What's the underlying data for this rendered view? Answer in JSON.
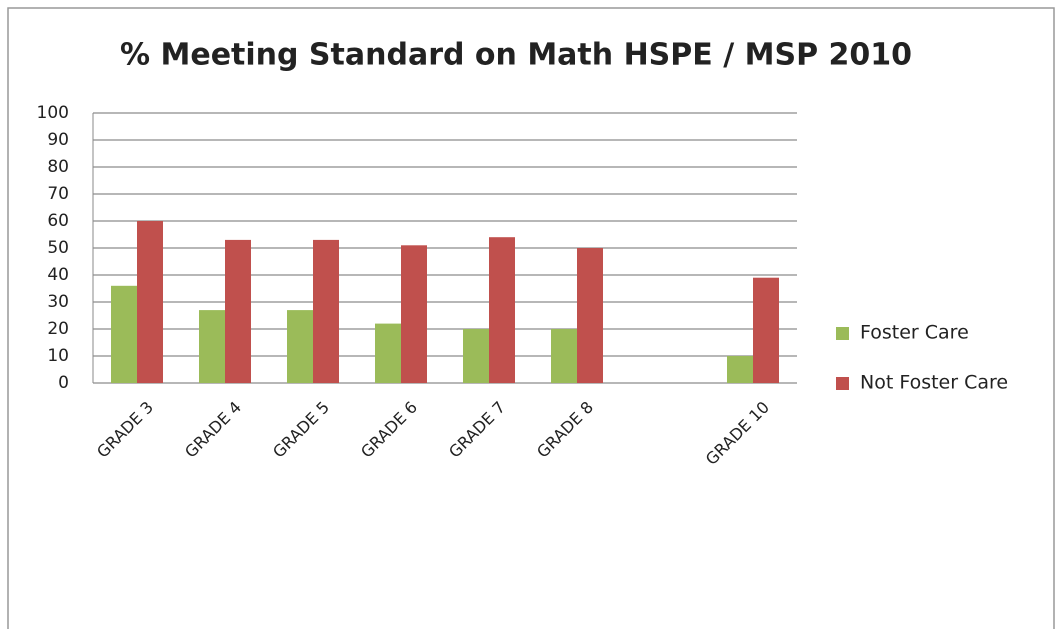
{
  "chart_data": {
    "type": "bar",
    "title": "% Meeting Standard on Math HSPE / MSP 2010",
    "categories": [
      "GRADE 3",
      "GRADE 4",
      "GRADE 5",
      "GRADE 6",
      "GRADE 7",
      "GRADE 8",
      null,
      "GRADE 10"
    ],
    "series": [
      {
        "name": "Foster Care",
        "color": "#9bbb59",
        "values": [
          36,
          27,
          27,
          22,
          20,
          20,
          null,
          10
        ]
      },
      {
        "name": "Not Foster Care",
        "color": "#c0504d",
        "values": [
          60,
          53,
          53,
          51,
          54,
          50,
          null,
          39
        ]
      }
    ],
    "ylim": [
      0,
      100
    ],
    "yticks": [
      0,
      10,
      20,
      30,
      40,
      50,
      60,
      70,
      80,
      90,
      100
    ],
    "grid": true,
    "legend": "right"
  }
}
